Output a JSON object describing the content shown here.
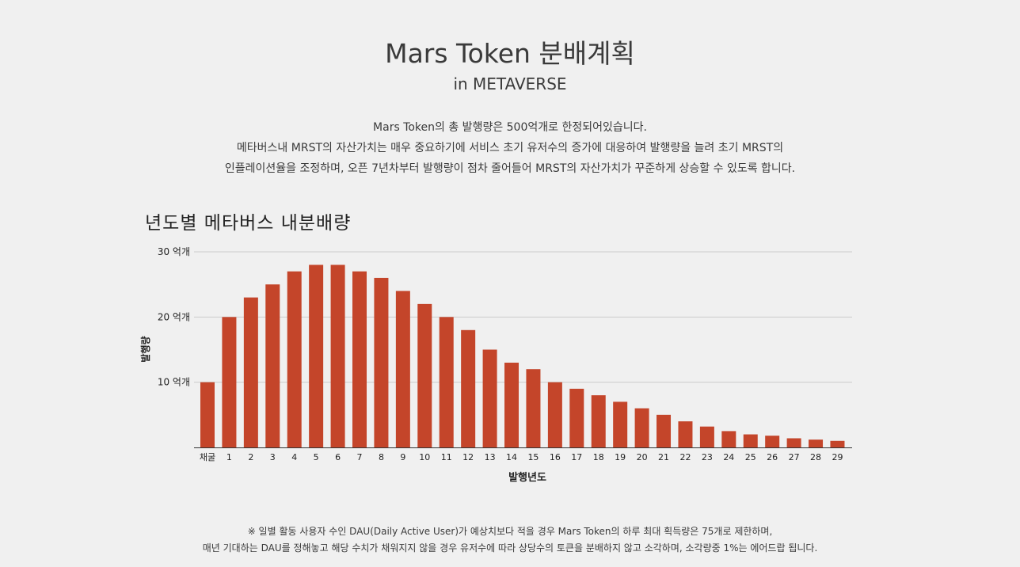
{
  "header": {
    "title": "Mars Token 분배계획",
    "subtitle": "in METAVERSE"
  },
  "intro": {
    "line1": "Mars Token의 총 발행량은 500억개로 한정되어있습니다.",
    "line2": "메타버스내 MRST의 자산가치는 매우 중요하기에  서비스 초기 유저수의 증가에 대응하여 발행량을 늘려 초기 MRST의",
    "line3": "인플레이션율을 조정하며, 오픈 7년차부터 발행량이 점차 줄어들어 MRST의 자산가치가 꾸준하게 상승할 수 있도록 합니다."
  },
  "chart_data": {
    "type": "bar",
    "title": "년도별 메타버스 내분배량",
    "xlabel": "발행년도",
    "ylabel": "발행량",
    "ylim": [
      0,
      30
    ],
    "yticks": [
      {
        "value": 10,
        "label": "10 억개"
      },
      {
        "value": 20,
        "label": "20 억개"
      },
      {
        "value": 30,
        "label": "30 억개"
      }
    ],
    "grid": true,
    "bar_color": "#c4452a",
    "categories": [
      "채굴",
      "1",
      "2",
      "3",
      "4",
      "5",
      "6",
      "7",
      "8",
      "9",
      "10",
      "11",
      "12",
      "13",
      "14",
      "15",
      "16",
      "17",
      "18",
      "19",
      "20",
      "21",
      "22",
      "23",
      "24",
      "25",
      "26",
      "27",
      "28",
      "29"
    ],
    "values": [
      10,
      20,
      23,
      25,
      27,
      28,
      28,
      27,
      26,
      24,
      22,
      20,
      18,
      15,
      13,
      12,
      10,
      9,
      8,
      7,
      6,
      5,
      4,
      3.2,
      2.5,
      2,
      1.8,
      1.4,
      1.2,
      1
    ]
  },
  "footnote": {
    "line1": "※ 일별 활동 사용자 수인 DAU(Daily Active User)가 예상치보다 적을 경우 Mars Token의 하루 최대 획득량은 75개로 제한하며,",
    "line2": "매년 기대하는 DAU를 정해놓고 해당 수치가 채워지지 않을 경우 유저수에 따라 상당수의 토큰을 분배하지 않고 소각하며, 소각량중 1%는 에어드랍 됩니다."
  }
}
